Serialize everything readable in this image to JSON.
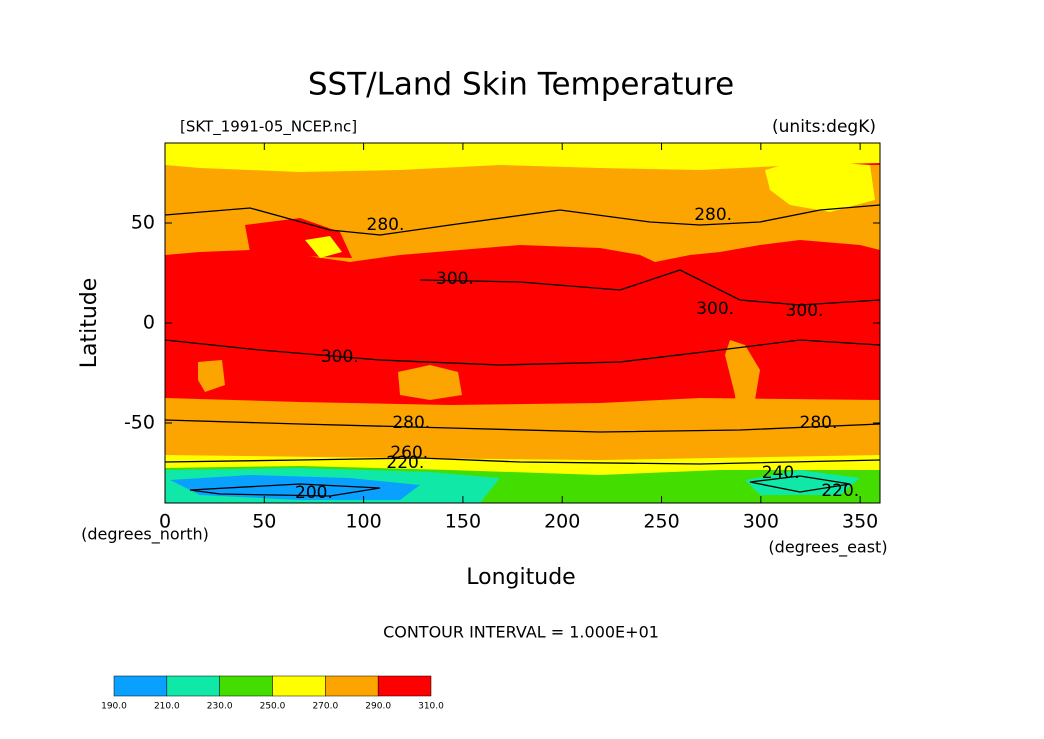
{
  "chart_data": {
    "type": "contour-map",
    "title": "SST/Land Skin Temperature",
    "subtitle": "[SKT_1991-05_NCEP.nc]",
    "units_label": "(units:degK)",
    "x_label": "Longitude",
    "y_label": "Latitude",
    "y_unit_label": "(degrees_north)",
    "x_unit_label": "(degrees_east)",
    "contour_interval": "CONTOUR INTERVAL = 1.000E+01",
    "xlim": [
      0,
      360
    ],
    "ylim": [
      -90,
      90
    ],
    "xticks": [
      0,
      50,
      100,
      150,
      200,
      250,
      300,
      350
    ],
    "yticks": [
      -50,
      0,
      50
    ],
    "contour_labels": [
      {
        "value": 280,
        "label": "280.",
        "lon": 111,
        "lat": 49
      },
      {
        "value": 280,
        "label": "280.",
        "lon": 276,
        "lat": 54
      },
      {
        "value": 300,
        "label": "300.",
        "lon": 146,
        "lat": 22
      },
      {
        "value": 300,
        "label": "300.",
        "lon": 88,
        "lat": -17
      },
      {
        "value": 300,
        "label": "300.",
        "lon": 277,
        "lat": 7
      },
      {
        "value": 300,
        "label": "300.",
        "lon": 322,
        "lat": 6
      },
      {
        "value": 280,
        "label": "280.",
        "lon": 124,
        "lat": -50
      },
      {
        "value": 280,
        "label": "280.",
        "lon": 329,
        "lat": -50
      },
      {
        "value": 260,
        "label": "260.",
        "lon": 123,
        "lat": -65
      },
      {
        "value": 220,
        "label": "220.",
        "lon": 121,
        "lat": -70
      },
      {
        "value": 200,
        "label": "200.",
        "lon": 75,
        "lat": -85
      },
      {
        "value": 240,
        "label": "240.",
        "lon": 310,
        "lat": -75
      },
      {
        "value": 220,
        "label": "220.",
        "lon": 340,
        "lat": -84
      }
    ],
    "colorbar": {
      "ticks": [
        {
          "value": 190,
          "label": "190.0"
        },
        {
          "value": 210,
          "label": "210.0"
        },
        {
          "value": 230,
          "label": "230.0"
        },
        {
          "value": 250,
          "label": "250.0"
        },
        {
          "value": 270,
          "label": "270.0"
        },
        {
          "value": 290,
          "label": "290.0"
        },
        {
          "value": 310,
          "label": "310.0"
        }
      ],
      "colors": [
        "#0aa0ff",
        "#10e8a8",
        "#44dd00",
        "#ffff00",
        "#fca400",
        "#ff0000"
      ]
    }
  }
}
